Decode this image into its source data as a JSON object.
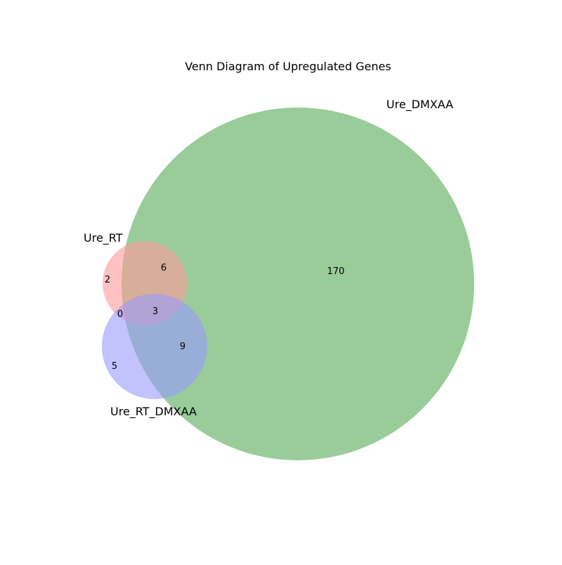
{
  "diagram": {
    "title": "Venn Diagram of Upregulated Genes",
    "sets": [
      {
        "id": "ure_rt",
        "label": "Ure_RT",
        "color": "#ff9999"
      },
      {
        "id": "ure_dmxaa",
        "label": "Ure_DMXAA",
        "color": "#99cc99"
      },
      {
        "id": "ure_rt_dmxaa",
        "label": "Ure_RT_DMXAA",
        "color": "#9999ff"
      }
    ],
    "regions": {
      "ure_rt_only": "2",
      "ure_rt_and_ure_dmxaa": "6",
      "ure_dmxaa_only": "170",
      "ure_rt_and_ure_rt_dmxaa": "0",
      "all_three": "3",
      "ure_dmxaa_and_ure_rt_dmxaa": "9",
      "ure_rt_dmxaa_only": "5"
    }
  }
}
